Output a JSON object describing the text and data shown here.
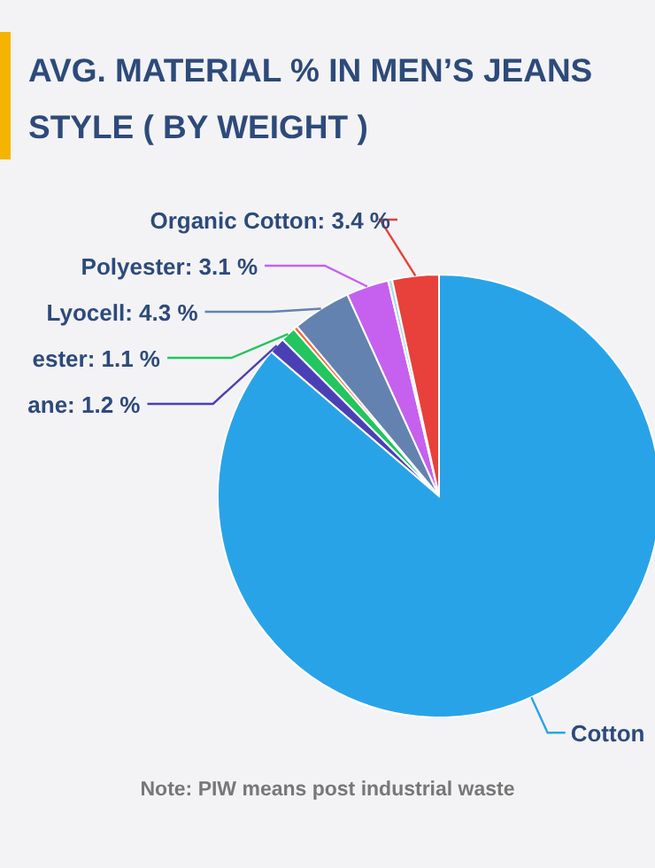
{
  "chart_data": {
    "type": "pie",
    "title": "AVG. MATERIAL % IN MEN’S JEANS STYLE ( BY WEIGHT )",
    "categories": [
      "Cotton",
      "ane",
      "ester",
      null,
      "Lyocell",
      "Polyester",
      null,
      "Organic Cotton"
    ],
    "values": [
      86.3,
      1.2,
      1.1,
      0.3,
      4.3,
      3.1,
      0.3,
      3.4
    ],
    "value_labels": [
      null,
      "1.2 %",
      "1.1 %",
      null,
      "4.3 %",
      "3.1 %",
      null,
      "3.4 %"
    ],
    "colors": [
      "#29a3e8",
      "#4b3fb5",
      "#22c55e",
      "#f26a3a",
      "#6482b0",
      "#c561ee",
      "#b0d8e8",
      "#e8403a"
    ],
    "annotations": [
      "Note: PIW means post industrial waste"
    ],
    "legend": false
  }
}
